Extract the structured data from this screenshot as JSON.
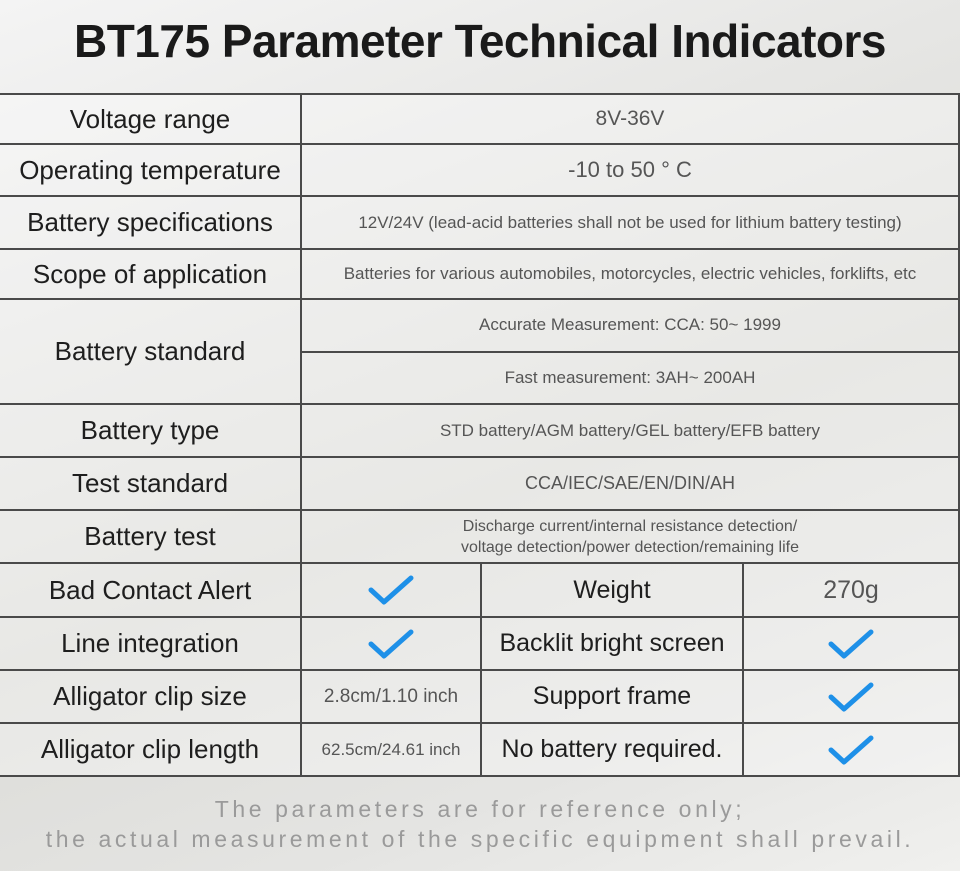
{
  "title": "BT175 Parameter Technical Indicators",
  "rows": [
    {
      "label": "Voltage range",
      "values": [
        "8V-36V"
      ]
    },
    {
      "label": "Operating temperature",
      "values": [
        "-10 to 50 ° C"
      ]
    },
    {
      "label": "Battery specifications",
      "values": [
        "12V/24V (lead-acid batteries shall not be used for lithium battery testing)"
      ]
    },
    {
      "label": "Scope of application",
      "values": [
        "Batteries for various automobiles, motorcycles, electric vehicles, forklifts, etc"
      ]
    },
    {
      "label": "Battery standard",
      "values": [
        "Accurate Measurement: CCA: 50~ 1999",
        "Fast measurement: 3AH~ 200AH"
      ]
    },
    {
      "label": "Battery type",
      "values": [
        "STD battery/AGM battery/GEL battery/EFB battery"
      ]
    },
    {
      "label": "Test standard",
      "values": [
        "CCA/IEC/SAE/EN/DIN/AH"
      ]
    },
    {
      "label": "Battery test",
      "lines": [
        "Discharge current/internal resistance detection/",
        "voltage detection/power detection/remaining life"
      ]
    }
  ],
  "grid": [
    [
      {
        "label": "Bad Contact Alert",
        "check": true
      },
      {
        "label": "Weight",
        "value": "270g"
      }
    ],
    [
      {
        "label": "Line integration",
        "check": true
      },
      {
        "label": "Backlit bright screen",
        "check": true
      }
    ],
    [
      {
        "label": "Alligator clip size",
        "value": "2.8cm/1.10 inch"
      },
      {
        "label": "Support frame",
        "check": true
      }
    ],
    [
      {
        "label": "Alligator clip length",
        "value": "62.5cm/24.61 inch"
      },
      {
        "label": "No battery required.",
        "check": true
      }
    ]
  ],
  "footnote": [
    "The parameters are for reference only;",
    "the actual measurement of the specific equipment shall prevail."
  ]
}
